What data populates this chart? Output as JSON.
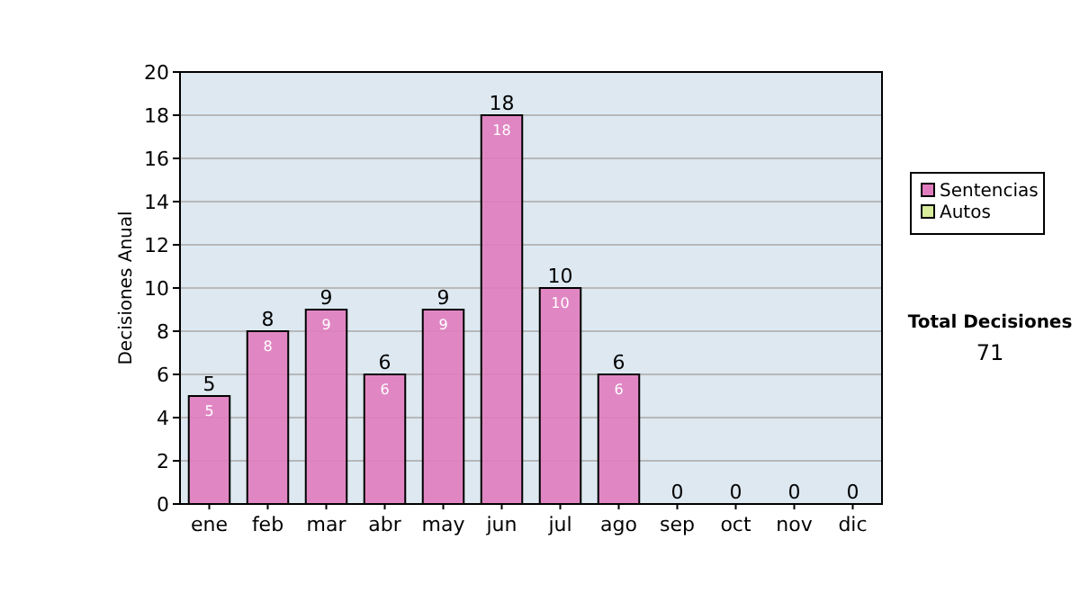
{
  "chart_data": {
    "type": "bar",
    "stacked": true,
    "ylabel": "Decisiones Anual",
    "categories": [
      "ene",
      "feb",
      "mar",
      "abr",
      "may",
      "jun",
      "jul",
      "ago",
      "sep",
      "oct",
      "nov",
      "dic"
    ],
    "series": [
      {
        "name": "Sentencias",
        "color": "#e07cbe",
        "values": [
          5,
          8,
          9,
          6,
          9,
          18,
          10,
          6,
          0,
          0,
          0,
          0
        ],
        "value_labels": [
          "5",
          "8",
          "9",
          "6",
          "9",
          "18",
          "10",
          "6",
          null,
          null,
          null,
          null
        ]
      },
      {
        "name": "Autos",
        "color": "#d8ec9c",
        "values": [
          0,
          0,
          0,
          0,
          0,
          0,
          0,
          0,
          0,
          0,
          0,
          0
        ]
      }
    ],
    "totals": [
      "5",
      "8",
      "9",
      "6",
      "9",
      "18",
      "10",
      "6",
      "0",
      "0",
      "0",
      "0"
    ],
    "ylim": [
      0,
      20
    ],
    "yticks": [
      0,
      2,
      4,
      6,
      8,
      10,
      12,
      14,
      16,
      18,
      20
    ],
    "grid": "y",
    "legend": "right",
    "annotations": [
      "Total Decisiones",
      "71"
    ]
  }
}
